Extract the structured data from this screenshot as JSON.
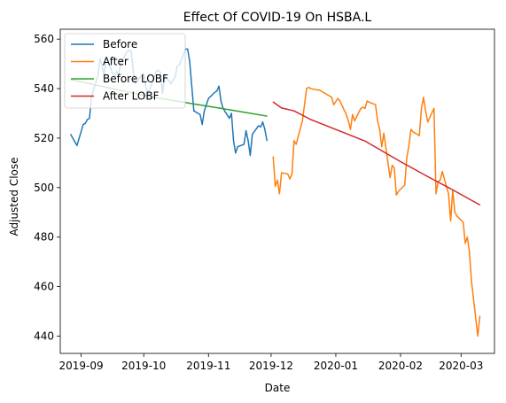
{
  "chart_data": {
    "type": "line",
    "title": "Effect Of COVID-19 On HSBA.L",
    "xlabel": "Date",
    "ylabel": "Adjusted Close",
    "xlim": [
      "2019-08-22",
      "2020-03-17"
    ],
    "ylim": [
      433,
      564
    ],
    "grid": false,
    "legend_position": "top-left",
    "x_ticks": [
      "2019-09-01",
      "2019-10-01",
      "2019-11-01",
      "2019-12-01",
      "2020-01-01",
      "2020-02-01",
      "2020-03-01"
    ],
    "x_tick_labels": [
      "2019-09",
      "2019-10",
      "2019-11",
      "2019-12",
      "2020-01",
      "2020-02",
      "2020-03"
    ],
    "y_ticks": [
      440,
      460,
      480,
      500,
      520,
      540,
      560
    ],
    "series": [
      {
        "name": "Before",
        "color": "#1f77b4",
        "points": [
          [
            "2019-08-27",
            521.5
          ],
          [
            "2019-08-28",
            520.0
          ],
          [
            "2019-08-29",
            518.5
          ],
          [
            "2019-08-30",
            517.0
          ],
          [
            "2019-09-02",
            525.5
          ],
          [
            "2019-09-03",
            526.0
          ],
          [
            "2019-09-04",
            527.5
          ],
          [
            "2019-09-05",
            528.0
          ],
          [
            "2019-09-06",
            537.0
          ],
          [
            "2019-09-09",
            545.0
          ],
          [
            "2019-09-10",
            552.0
          ],
          [
            "2019-09-11",
            549.5
          ],
          [
            "2019-09-12",
            545.0
          ],
          [
            "2019-09-13",
            553.0
          ],
          [
            "2019-09-16",
            546.5
          ],
          [
            "2019-09-17",
            545.0
          ],
          [
            "2019-09-18",
            547.0
          ],
          [
            "2019-09-19",
            545.5
          ],
          [
            "2019-09-20",
            550.5
          ],
          [
            "2019-09-23",
            555.0
          ],
          [
            "2019-09-24",
            555.5
          ],
          [
            "2019-09-25",
            555.0
          ],
          [
            "2019-09-26",
            547.0
          ],
          [
            "2019-09-27",
            542.0
          ],
          [
            "2019-09-30",
            545.5
          ],
          [
            "2019-10-01",
            546.0
          ],
          [
            "2019-10-02",
            540.5
          ],
          [
            "2019-10-03",
            538.0
          ],
          [
            "2019-10-04",
            540.0
          ],
          [
            "2019-10-07",
            547.0
          ],
          [
            "2019-10-08",
            547.5
          ],
          [
            "2019-10-09",
            546.5
          ],
          [
            "2019-10-10",
            538.0
          ],
          [
            "2019-10-11",
            545.5
          ],
          [
            "2019-10-14",
            542.0
          ],
          [
            "2019-10-15",
            543.5
          ],
          [
            "2019-10-16",
            544.5
          ],
          [
            "2019-10-17",
            549.0
          ],
          [
            "2019-10-18",
            549.5
          ],
          [
            "2019-10-21",
            556.0
          ],
          [
            "2019-10-22",
            556.0
          ],
          [
            "2019-10-23",
            551.0
          ],
          [
            "2019-10-24",
            541.0
          ],
          [
            "2019-10-25",
            531.0
          ],
          [
            "2019-10-28",
            529.5
          ],
          [
            "2019-10-29",
            525.5
          ],
          [
            "2019-10-30",
            531.0
          ],
          [
            "2019-10-31",
            533.5
          ],
          [
            "2019-11-01",
            536.0
          ],
          [
            "2019-11-04",
            538.5
          ],
          [
            "2019-11-05",
            539.0
          ],
          [
            "2019-11-06",
            541.0
          ],
          [
            "2019-11-07",
            535.0
          ],
          [
            "2019-11-08",
            532.0
          ],
          [
            "2019-11-11",
            528.0
          ],
          [
            "2019-11-12",
            530.0
          ],
          [
            "2019-11-13",
            519.0
          ],
          [
            "2019-11-14",
            514.0
          ],
          [
            "2019-11-15",
            516.5
          ],
          [
            "2019-11-18",
            517.5
          ],
          [
            "2019-11-19",
            523.0
          ],
          [
            "2019-11-20",
            519.0
          ],
          [
            "2019-11-21",
            513.0
          ],
          [
            "2019-11-22",
            521.5
          ],
          [
            "2019-11-25",
            525.0
          ],
          [
            "2019-11-26",
            524.5
          ],
          [
            "2019-11-27",
            526.5
          ],
          [
            "2019-11-28",
            523.5
          ],
          [
            "2019-11-29",
            519.0
          ]
        ]
      },
      {
        "name": "After",
        "color": "#ff7f0e",
        "points": [
          [
            "2019-12-02",
            512.5
          ],
          [
            "2019-12-03",
            500.5
          ],
          [
            "2019-12-04",
            503.0
          ],
          [
            "2019-12-05",
            497.5
          ],
          [
            "2019-12-06",
            506.0
          ],
          [
            "2019-12-09",
            505.5
          ],
          [
            "2019-12-10",
            503.5
          ],
          [
            "2019-12-11",
            505.5
          ],
          [
            "2019-12-12",
            519.0
          ],
          [
            "2019-12-13",
            517.5
          ],
          [
            "2019-12-16",
            527.0
          ],
          [
            "2019-12-17",
            533.5
          ],
          [
            "2019-12-18",
            540.0
          ],
          [
            "2019-12-19",
            540.5
          ],
          [
            "2019-12-20",
            540.0
          ],
          [
            "2019-12-23",
            539.5
          ],
          [
            "2019-12-24",
            539.5
          ],
          [
            "2019-12-27",
            538.0
          ],
          [
            "2019-12-30",
            536.5
          ],
          [
            "2019-12-31",
            533.5
          ],
          [
            "2020-01-02",
            536.0
          ],
          [
            "2020-01-03",
            535.0
          ],
          [
            "2020-01-06",
            529.5
          ],
          [
            "2020-01-07",
            527.0
          ],
          [
            "2020-01-08",
            523.5
          ],
          [
            "2020-01-09",
            529.5
          ],
          [
            "2020-01-10",
            527.0
          ],
          [
            "2020-01-13",
            532.0
          ],
          [
            "2020-01-14",
            532.5
          ],
          [
            "2020-01-15",
            532.0
          ],
          [
            "2020-01-16",
            535.0
          ],
          [
            "2020-01-17",
            534.5
          ],
          [
            "2020-01-20",
            533.5
          ],
          [
            "2020-01-21",
            527.0
          ],
          [
            "2020-01-22",
            523.5
          ],
          [
            "2020-01-23",
            516.5
          ],
          [
            "2020-01-24",
            522.0
          ],
          [
            "2020-01-27",
            504.0
          ],
          [
            "2020-01-28",
            509.0
          ],
          [
            "2020-01-29",
            508.0
          ],
          [
            "2020-01-30",
            497.0
          ],
          [
            "2020-01-31",
            498.5
          ],
          [
            "2020-02-03",
            501.0
          ],
          [
            "2020-02-04",
            512.0
          ],
          [
            "2020-02-05",
            517.0
          ],
          [
            "2020-02-06",
            523.5
          ],
          [
            "2020-02-07",
            522.5
          ],
          [
            "2020-02-10",
            521.0
          ],
          [
            "2020-02-11",
            532.0
          ],
          [
            "2020-02-12",
            536.5
          ],
          [
            "2020-02-13",
            531.0
          ],
          [
            "2020-02-14",
            526.5
          ],
          [
            "2020-02-17",
            532.0
          ],
          [
            "2020-02-18",
            497.5
          ],
          [
            "2020-02-19",
            502.5
          ],
          [
            "2020-02-20",
            503.0
          ],
          [
            "2020-02-21",
            506.5
          ],
          [
            "2020-02-24",
            497.5
          ],
          [
            "2020-02-25",
            486.5
          ],
          [
            "2020-02-26",
            499.0
          ],
          [
            "2020-02-27",
            490.0
          ],
          [
            "2020-02-28",
            488.5
          ],
          [
            "2020-03-02",
            486.0
          ],
          [
            "2020-03-03",
            477.5
          ],
          [
            "2020-03-04",
            480.0
          ],
          [
            "2020-03-05",
            474.0
          ],
          [
            "2020-03-06",
            462.0
          ],
          [
            "2020-03-09",
            440.0
          ],
          [
            "2020-03-10",
            448.0
          ]
        ]
      },
      {
        "name": "Before LOBF",
        "color": "#2ca02c",
        "points": [
          [
            "2019-08-27",
            543.6
          ],
          [
            "2019-09-15",
            540.2
          ],
          [
            "2019-10-05",
            536.6
          ],
          [
            "2019-10-25",
            533.8
          ],
          [
            "2019-11-10",
            531.6
          ],
          [
            "2019-11-29",
            528.9
          ]
        ]
      },
      {
        "name": "After LOBF",
        "color": "#d62728",
        "points": [
          [
            "2019-12-02",
            534.6
          ],
          [
            "2019-12-06",
            532.2
          ],
          [
            "2019-12-12",
            531.0
          ],
          [
            "2019-12-20",
            527.5
          ],
          [
            "2020-01-01",
            523.5
          ],
          [
            "2020-01-15",
            518.8
          ],
          [
            "2020-02-01",
            510.5
          ],
          [
            "2020-02-15",
            504.0
          ],
          [
            "2020-02-24",
            500.0
          ],
          [
            "2020-03-01",
            497.2
          ],
          [
            "2020-03-10",
            493.0
          ]
        ]
      }
    ]
  }
}
